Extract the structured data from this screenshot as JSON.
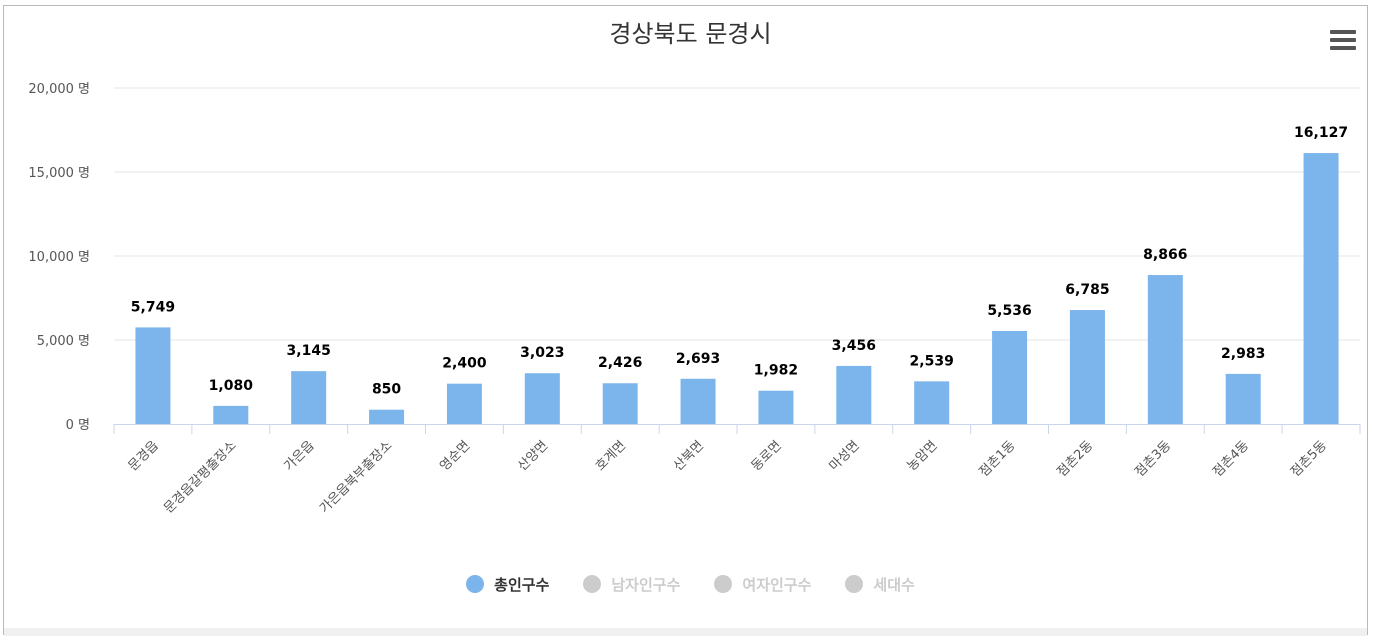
{
  "colors": {
    "bar": "#7cb5ec",
    "inactive": "#cccccc",
    "text": "#333333",
    "grid": "#e6e6e6",
    "axis": "#ccd6eb"
  },
  "header": {
    "menu_icon": "hamburger-menu-icon"
  },
  "chart_data": {
    "type": "bar",
    "title": "경상북도 문경시",
    "categories": [
      "문경읍",
      "문경읍갈평출장소",
      "가은읍",
      "가은읍북부출장소",
      "영순면",
      "산양면",
      "호계면",
      "산북면",
      "동로면",
      "마성면",
      "농암면",
      "점촌1동",
      "점촌2동",
      "점촌3동",
      "점촌4동",
      "점촌5동"
    ],
    "series": [
      {
        "name": "총인구수",
        "values": [
          5749,
          1080,
          3145,
          850,
          2400,
          3023,
          2426,
          2693,
          1982,
          3456,
          2539,
          5536,
          6785,
          8866,
          2983,
          16127
        ],
        "visible": true
      }
    ],
    "data_labels": [
      "5,749",
      "1,080",
      "3,145",
      "850",
      "2,400",
      "3,023",
      "2,426",
      "2,693",
      "1,982",
      "3,456",
      "2,539",
      "5,536",
      "6,785",
      "8,866",
      "2,983",
      "16,127"
    ],
    "yticks": [
      "0 명",
      "5,000 명",
      "10,000 명",
      "15,000 명",
      "20,000 명"
    ],
    "ytick_values": [
      0,
      5000,
      10000,
      15000,
      20000
    ],
    "ylim": [
      0,
      20000
    ],
    "grid": true,
    "legend_position": "bottom-center",
    "legend": [
      {
        "label": "총인구수",
        "active": true
      },
      {
        "label": "남자인구수",
        "active": false
      },
      {
        "label": "여자인구수",
        "active": false
      },
      {
        "label": "세대수",
        "active": false
      }
    ]
  }
}
